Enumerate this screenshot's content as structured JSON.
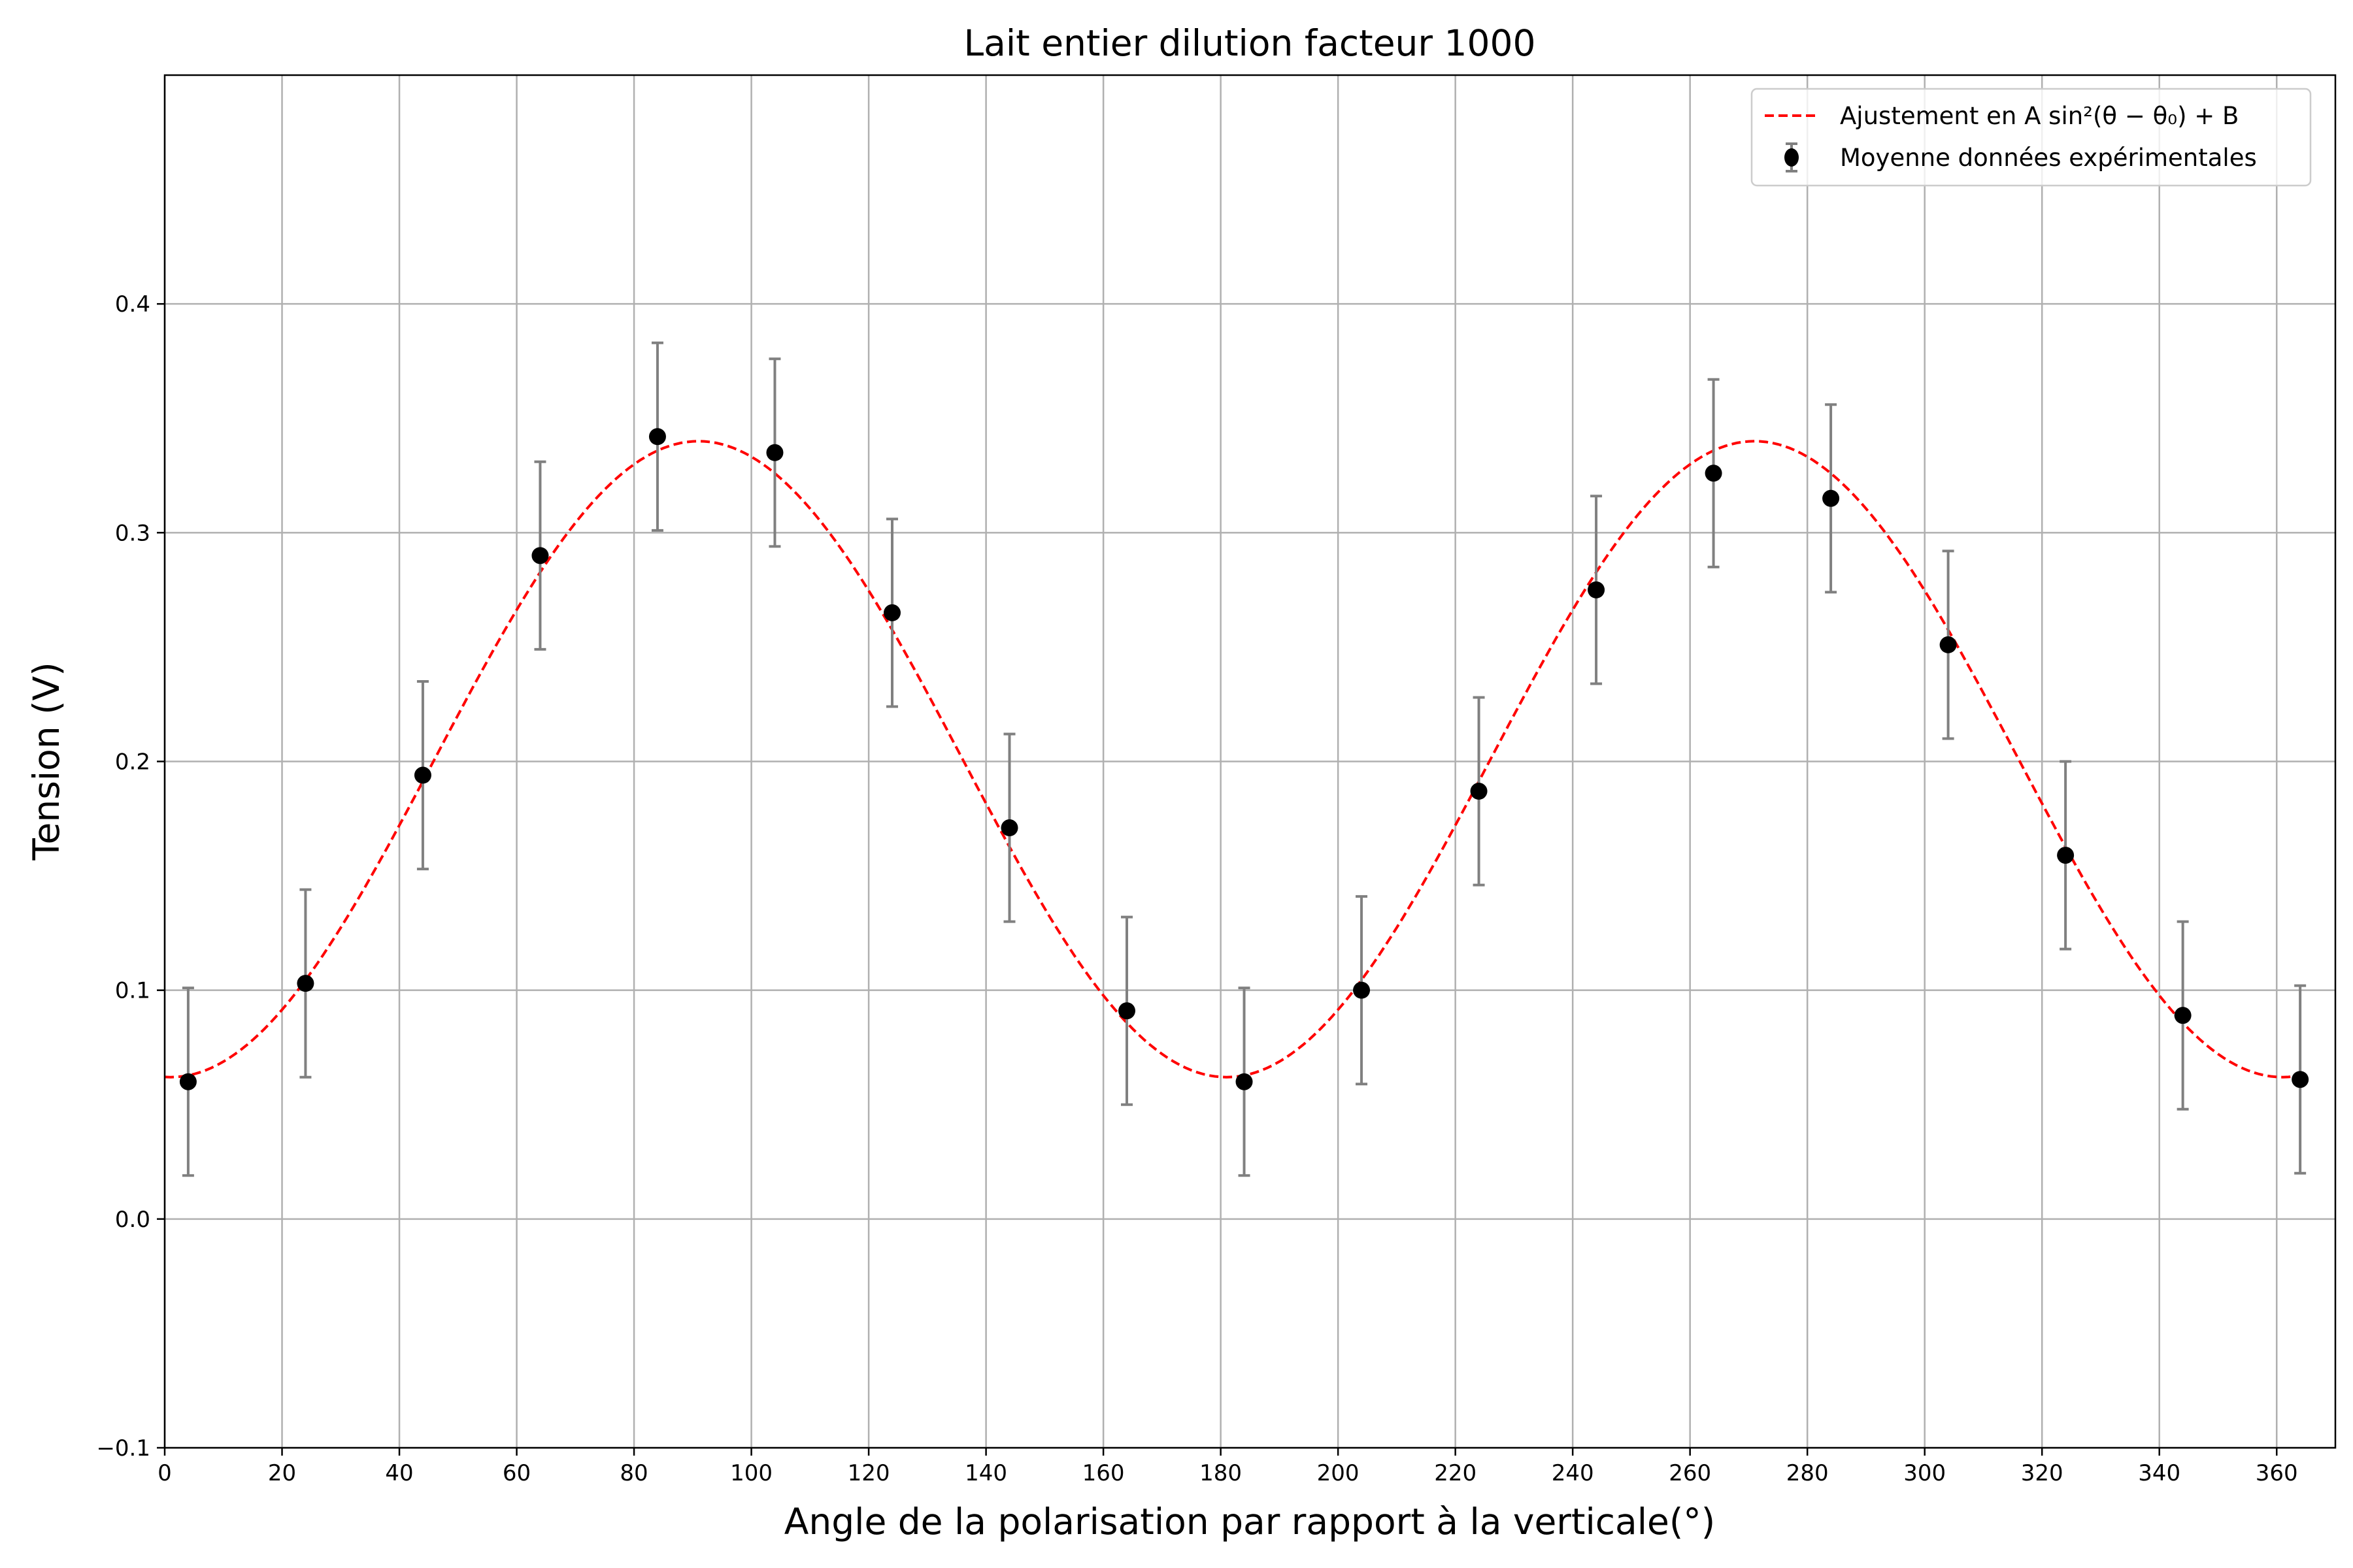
{
  "chart_data": {
    "type": "scatter",
    "title": "Lait entier dilution facteur 1000",
    "xlabel": "Angle de la polarisation par rapport à la verticale(°)",
    "ylabel": "Tension (V)",
    "xlim": [
      0,
      370
    ],
    "ylim": [
      -0.1,
      0.5
    ],
    "grid": true,
    "xticks": [
      0,
      20,
      40,
      60,
      80,
      100,
      120,
      140,
      160,
      180,
      200,
      220,
      240,
      260,
      280,
      300,
      320,
      340,
      360
    ],
    "yticks": [
      -0.1,
      0.0,
      0.1,
      0.2,
      0.3,
      0.4
    ],
    "ytick_labels": [
      "−0.1",
      "0.0",
      "0.1",
      "0.2",
      "0.3",
      "0.4"
    ],
    "legend_position": "top-right",
    "series": [
      {
        "name": "Moyenne données expérimentales",
        "kind": "errorbar",
        "color": "#000000",
        "errcolor": "#808080",
        "x": [
          4,
          24,
          44,
          64,
          84,
          104,
          124,
          144,
          164,
          184,
          204,
          224,
          244,
          264,
          284,
          304,
          324,
          344,
          364
        ],
        "y": [
          0.06,
          0.103,
          0.194,
          0.29,
          0.342,
          0.335,
          0.265,
          0.171,
          0.091,
          0.06,
          0.1,
          0.187,
          0.275,
          0.326,
          0.315,
          0.251,
          0.159,
          0.089,
          0.061
        ],
        "yerr": 0.041
      },
      {
        "name": "Ajustement en A sin²(θ − θ₀) + B",
        "kind": "line",
        "style": "dashed",
        "color": "#ff0000",
        "model": {
          "A": 0.278,
          "B": 0.062,
          "theta0_deg": 1
        },
        "x_range": [
          0,
          364
        ]
      }
    ]
  }
}
